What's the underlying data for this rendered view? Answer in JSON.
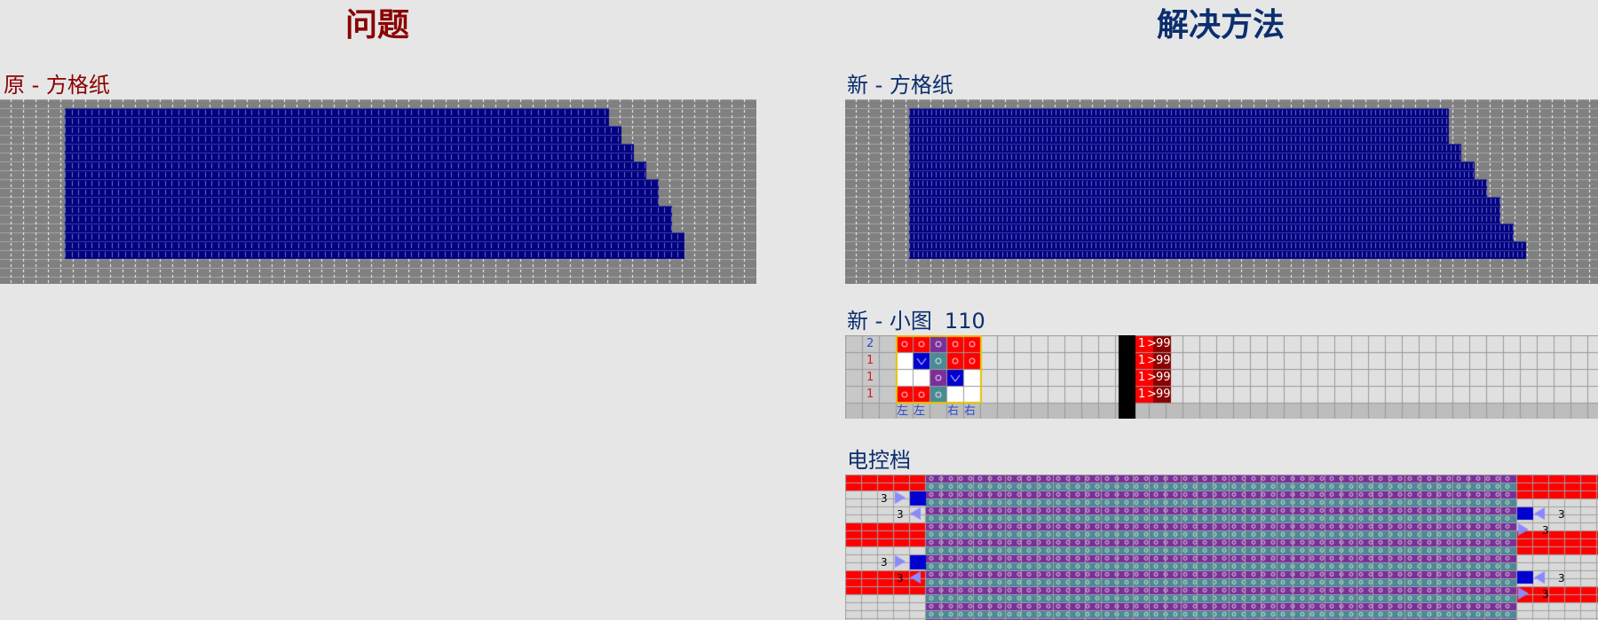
{
  "left": {
    "heading": "问题",
    "subtitle": "原 - 方格纸"
  },
  "right": {
    "heading": "解决方法",
    "grid_subtitle": "新 - 方格纸",
    "small_subtitle": "新 - 小图",
    "small_number": "110",
    "small": {
      "row_counts": [
        "2",
        "1",
        "1",
        "1"
      ],
      "bottom_labels": [
        "左",
        "左",
        "右",
        "右"
      ],
      "repeat_cells": [
        {
          "start": "1",
          "end": "99"
        },
        {
          "start": "1",
          "end": "99"
        },
        {
          "start": "1",
          "end": "99"
        },
        {
          "start": "1",
          "end": "99"
        }
      ]
    },
    "control_subtitle": "电控档",
    "control_numbers": [
      "3",
      "3",
      "3",
      "3",
      "3",
      "3",
      "3",
      "3"
    ]
  },
  "colors": {
    "problem_title": "#8b0000",
    "solution_title": "#0b2e6e",
    "grid_gray": "#808080",
    "stitch_blue": "#000080",
    "red": "#ff0000",
    "purple": "#7a2e9a",
    "teal": "#4a8a94",
    "light": "#d9d9d9"
  }
}
